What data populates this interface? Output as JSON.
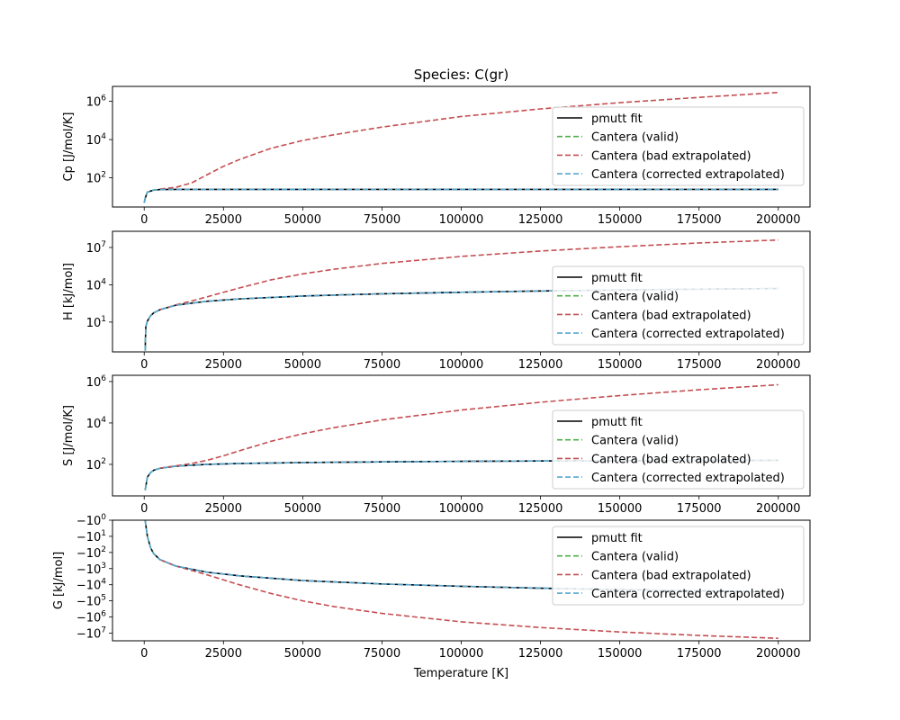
{
  "figure": {
    "title": "Species: C(gr)",
    "xlabel": "Temperature [K]"
  },
  "legend": {
    "entries": [
      {
        "label": "pmutt fit",
        "color": "#000000",
        "dash": "solid"
      },
      {
        "label": "Cantera (valid)",
        "color": "#4daf4a",
        "dash": "dashed"
      },
      {
        "label": "Cantera (bad extrapolated)",
        "color": "#c44e52",
        "dash": "dashed"
      },
      {
        "label": "Cantera (corrected extrapolated)",
        "color": "#56a8d1",
        "dash": "dashed"
      }
    ],
    "placement": "center-right"
  },
  "chart_data": [
    {
      "type": "line",
      "title": "Species: C(gr)",
      "ylabel": "Cp [J/mol/K]",
      "xlabel": "",
      "yscale": "log",
      "xlim": [
        -10000,
        210000
      ],
      "ylim": [
        3,
        6000000
      ],
      "x_ticks": [
        "0",
        "25000",
        "50000",
        "75000",
        "100000",
        "125000",
        "150000",
        "175000",
        "200000"
      ],
      "y_ticks": [
        {
          "base": "10",
          "exp": "2",
          "value": 100
        },
        {
          "base": "10",
          "exp": "4",
          "value": 10000
        },
        {
          "base": "10",
          "exp": "6",
          "value": 1000000
        }
      ],
      "series": [
        {
          "name": "pmutt fit",
          "x": [
            0,
            300,
            1000,
            3000,
            5000,
            10000,
            200000
          ],
          "y": [
            5,
            8.5,
            18,
            23,
            24.5,
            25,
            25
          ]
        },
        {
          "name": "Cantera (valid)",
          "x": [
            0,
            300,
            1000,
            3000,
            5000
          ],
          "y": [
            5,
            8.5,
            18,
            23,
            24.5
          ]
        },
        {
          "name": "Cantera (bad extrapolated)",
          "x": [
            5000,
            10000,
            15000,
            20000,
            25000,
            30000,
            40000,
            50000,
            60000,
            75000,
            100000,
            125000,
            150000,
            175000,
            200000
          ],
          "y": [
            26,
            32,
            55,
            150,
            400,
            900,
            3500,
            9000,
            18000,
            45000,
            160000,
            400000,
            850000,
            1600000,
            2900000
          ]
        },
        {
          "name": "Cantera (corrected extrapolated)",
          "x": [
            0,
            300,
            1000,
            3000,
            5000,
            10000,
            200000
          ],
          "y": [
            5,
            8.5,
            18,
            23,
            24.5,
            25,
            25
          ]
        }
      ]
    },
    {
      "type": "line",
      "ylabel": "H [kJ/mol]",
      "xlabel": "",
      "yscale": "log",
      "xlim": [
        -10000,
        210000
      ],
      "ylim": [
        0.04,
        200000000
      ],
      "x_ticks": [
        "0",
        "25000",
        "50000",
        "75000",
        "100000",
        "125000",
        "150000",
        "175000",
        "200000"
      ],
      "y_ticks": [
        {
          "base": "10",
          "exp": "1",
          "value": 10
        },
        {
          "base": "10",
          "exp": "4",
          "value": 10000
        },
        {
          "base": "10",
          "exp": "7",
          "value": 10000000
        }
      ],
      "series": [
        {
          "name": "pmutt fit",
          "x": [
            300,
            500,
            1000,
            2000,
            3000,
            5000,
            10000,
            20000,
            30000,
            50000,
            75000,
            100000,
            125000,
            150000,
            175000,
            200000
          ],
          "y": [
            0.05,
            4,
            12,
            32,
            55,
            100,
            230,
            480,
            730,
            1250,
            1900,
            2500,
            3150,
            3800,
            4400,
            5000
          ]
        },
        {
          "name": "Cantera (valid)",
          "x": [
            300,
            500,
            1000,
            2000,
            3000,
            5000
          ],
          "y": [
            0.05,
            4,
            12,
            32,
            55,
            100
          ]
        },
        {
          "name": "Cantera (bad extrapolated)",
          "x": [
            5000,
            10000,
            15000,
            20000,
            25000,
            30000,
            40000,
            50000,
            60000,
            75000,
            100000,
            125000,
            150000,
            175000,
            200000
          ],
          "y": [
            100,
            240,
            500,
            1100,
            2500,
            5500,
            25000,
            75000,
            180000,
            520000,
            1900000,
            5200000,
            11500000,
            23000000,
            40000000
          ]
        },
        {
          "name": "Cantera (corrected extrapolated)",
          "x": [
            300,
            500,
            1000,
            2000,
            3000,
            5000,
            10000,
            20000,
            30000,
            50000,
            75000,
            100000,
            125000,
            150000,
            175000,
            200000
          ],
          "y": [
            0.05,
            4,
            12,
            32,
            55,
            100,
            230,
            480,
            730,
            1250,
            1900,
            2500,
            3150,
            3800,
            4400,
            5000
          ]
        }
      ]
    },
    {
      "type": "line",
      "ylabel": "S [J/mol/K]",
      "xlabel": "",
      "yscale": "log",
      "xlim": [
        -10000,
        210000
      ],
      "ylim": [
        3,
        2000000
      ],
      "x_ticks": [
        "0",
        "25000",
        "50000",
        "75000",
        "100000",
        "125000",
        "150000",
        "175000",
        "200000"
      ],
      "y_ticks": [
        {
          "base": "10",
          "exp": "2",
          "value": 100
        },
        {
          "base": "10",
          "exp": "4",
          "value": 10000
        },
        {
          "base": "10",
          "exp": "6",
          "value": 1000000
        }
      ],
      "series": [
        {
          "name": "pmutt fit",
          "x": [
            300,
            1000,
            2000,
            3000,
            5000,
            10000,
            20000,
            30000,
            50000,
            75000,
            100000,
            125000,
            150000,
            175000,
            200000
          ],
          "y": [
            5.7,
            24,
            40,
            52,
            65,
            82,
            100,
            110,
            122,
            132,
            140,
            146,
            150,
            154,
            158
          ]
        },
        {
          "name": "Cantera (valid)",
          "x": [
            300,
            1000,
            2000,
            3000,
            5000
          ],
          "y": [
            5.7,
            24,
            40,
            52,
            65
          ]
        },
        {
          "name": "Cantera (bad extrapolated)",
          "x": [
            5000,
            10000,
            15000,
            20000,
            25000,
            30000,
            40000,
            50000,
            60000,
            75000,
            100000,
            125000,
            150000,
            175000,
            200000
          ],
          "y": [
            66,
            85,
            110,
            160,
            260,
            450,
            1300,
            3000,
            6000,
            14000,
            42000,
            100000,
            210000,
            400000,
            700000
          ]
        },
        {
          "name": "Cantera (corrected extrapolated)",
          "x": [
            300,
            1000,
            2000,
            3000,
            5000,
            10000,
            20000,
            30000,
            50000,
            75000,
            100000,
            125000,
            150000,
            175000,
            200000
          ],
          "y": [
            5.7,
            24,
            40,
            52,
            65,
            82,
            100,
            110,
            122,
            132,
            140,
            146,
            150,
            154,
            158
          ]
        }
      ]
    },
    {
      "type": "line",
      "ylabel": "G [kJ/mol]",
      "xlabel": "Temperature [K]",
      "yscale": "symlog",
      "xlim": [
        -10000,
        210000
      ],
      "ylim": [
        -30000000,
        -1
      ],
      "x_ticks": [
        "0",
        "25000",
        "50000",
        "75000",
        "100000",
        "125000",
        "150000",
        "175000",
        "200000"
      ],
      "y_ticks": [
        {
          "base": "−10",
          "exp": "0",
          "value": -1
        },
        {
          "base": "−10",
          "exp": "1",
          "value": -10
        },
        {
          "base": "−10",
          "exp": "2",
          "value": -100
        },
        {
          "base": "−10",
          "exp": "3",
          "value": -1000
        },
        {
          "base": "−10",
          "exp": "4",
          "value": -10000
        },
        {
          "base": "−10",
          "exp": "5",
          "value": -100000
        },
        {
          "base": "−10",
          "exp": "6",
          "value": -1000000
        },
        {
          "base": "−10",
          "exp": "7",
          "value": -10000000
        }
      ],
      "series": [
        {
          "name": "pmutt fit",
          "x": [
            300,
            1000,
            2000,
            3000,
            5000,
            10000,
            20000,
            30000,
            50000,
            75000,
            100000,
            125000,
            150000,
            175000,
            200000
          ],
          "y": [
            -1,
            -10,
            -50,
            -120,
            -280,
            -700,
            -1700,
            -2800,
            -5500,
            -9000,
            -12500,
            -16500,
            -20000,
            -24000,
            -28000
          ]
        },
        {
          "name": "Cantera (valid)",
          "x": [
            300,
            1000,
            2000,
            3000,
            5000
          ],
          "y": [
            -1,
            -10,
            -50,
            -120,
            -280
          ]
        },
        {
          "name": "Cantera (bad extrapolated)",
          "x": [
            5000,
            10000,
            15000,
            20000,
            25000,
            30000,
            40000,
            50000,
            60000,
            75000,
            100000,
            125000,
            150000,
            175000,
            200000
          ],
          "y": [
            -280,
            -700,
            -1300,
            -2500,
            -5000,
            -10000,
            -35000,
            -100000,
            -230000,
            -600000,
            -2000000,
            -4500000,
            -8500000,
            -14000000,
            -21000000
          ]
        },
        {
          "name": "Cantera (corrected extrapolated)",
          "x": [
            300,
            1000,
            2000,
            3000,
            5000,
            10000,
            20000,
            30000,
            50000,
            75000,
            100000,
            125000,
            150000,
            175000,
            200000
          ],
          "y": [
            -1,
            -10,
            -50,
            -120,
            -280,
            -700,
            -1700,
            -2800,
            -5500,
            -9000,
            -12500,
            -16500,
            -20000,
            -24000,
            -28000
          ]
        }
      ]
    }
  ]
}
